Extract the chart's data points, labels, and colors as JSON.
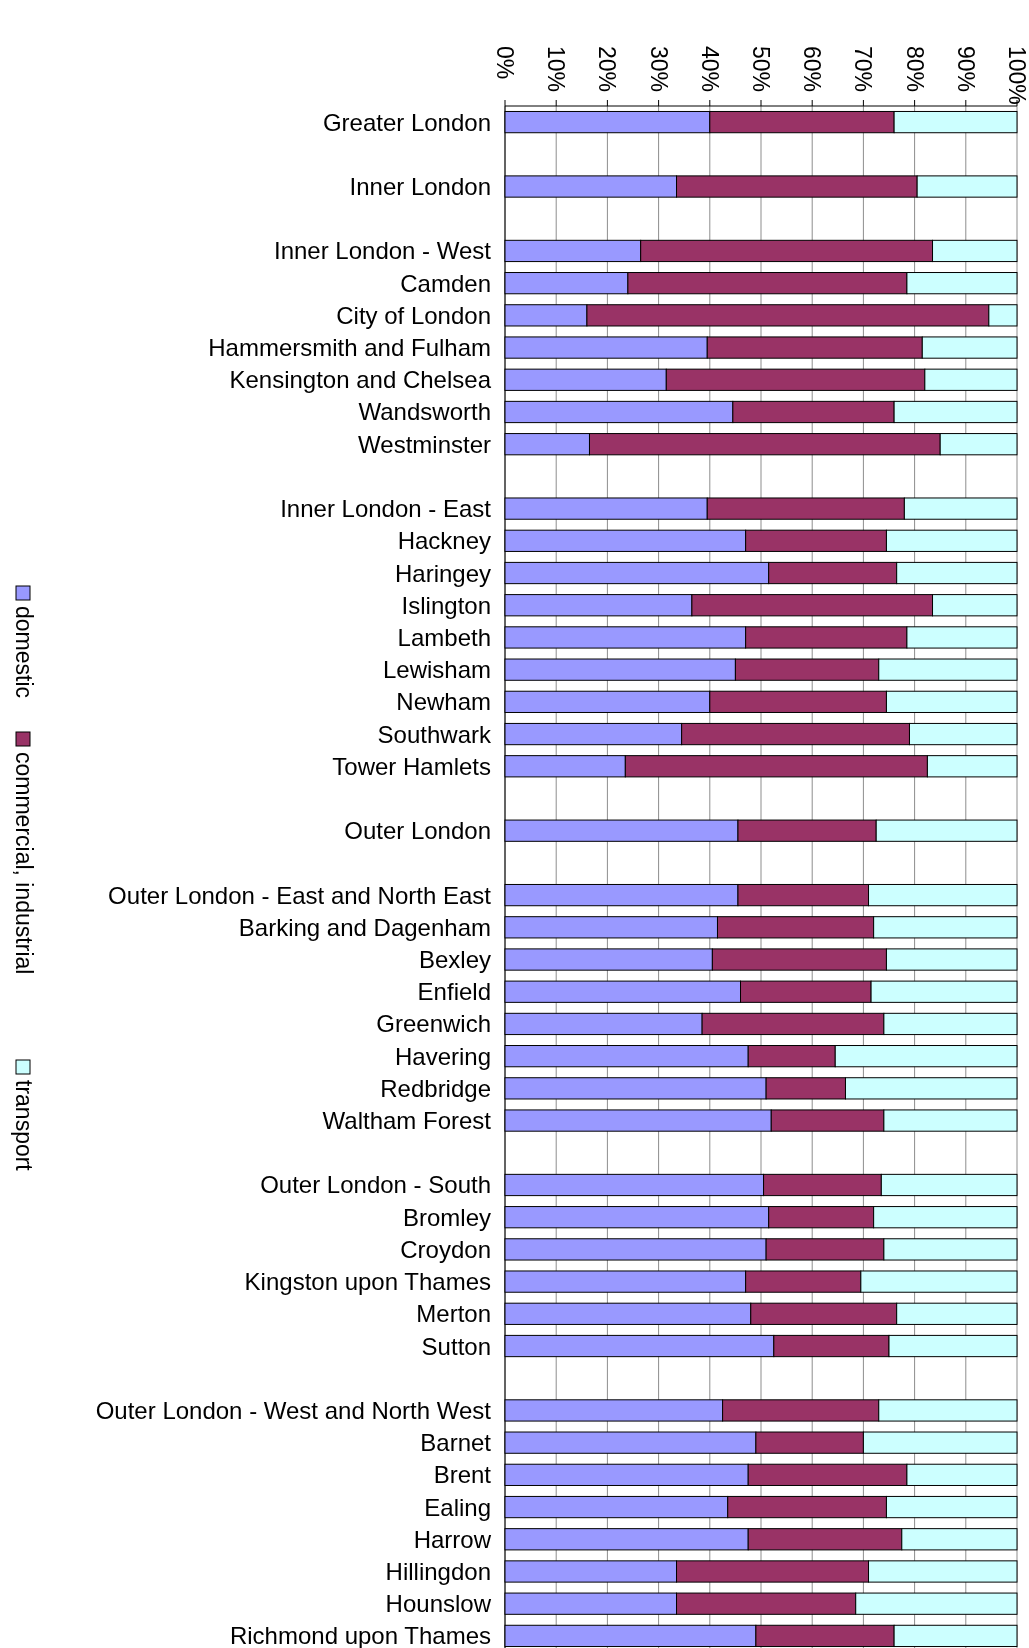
{
  "chart_data": {
    "type": "bar",
    "orientation": "horizontal",
    "stacked": true,
    "grid": "x",
    "legend": "left",
    "categories": [
      "Greater London",
      null,
      "Inner London",
      null,
      "Inner London - West",
      "Camden",
      "City of London",
      "Hammersmith and Fulham",
      "Kensington and Chelsea",
      "Wandsworth",
      "Westminster",
      null,
      "Inner London - East",
      "Hackney",
      "Haringey",
      "Islington",
      "Lambeth",
      "Lewisham",
      "Newham",
      "Southwark",
      "Tower Hamlets",
      null,
      "Outer London",
      null,
      "Outer London - East and North East",
      "Barking and Dagenham",
      "Bexley",
      "Enfield",
      "Greenwich",
      "Havering",
      "Redbridge",
      "Waltham Forest",
      null,
      "Outer London - South",
      "Bromley",
      "Croydon",
      "Kingston upon Thames",
      "Merton",
      "Sutton",
      null,
      "Outer London - West and North West",
      "Barnet",
      "Brent",
      "Ealing",
      "Harrow",
      "Hillingdon",
      "Hounslow",
      "Richmond upon Thames"
    ],
    "series": [
      {
        "name": "domestic",
        "color": "#9999ff",
        "values": [
          40,
          null,
          33.5,
          null,
          26.5,
          24,
          16,
          39.5,
          31.5,
          44.5,
          16.5,
          null,
          39.5,
          47,
          51.5,
          36.5,
          47,
          45,
          40,
          34.5,
          23.5,
          null,
          45.5,
          null,
          45.5,
          41.5,
          40.5,
          46,
          38.5,
          47.5,
          51,
          52,
          null,
          50.5,
          51.5,
          51,
          47,
          48,
          52.5,
          null,
          42.5,
          49,
          47.5,
          43.5,
          47.5,
          33.5,
          33.5,
          49
        ]
      },
      {
        "name": "commercial, industrial",
        "color": "#993366",
        "values": [
          36,
          null,
          47,
          null,
          57,
          54.5,
          78.5,
          42,
          50.5,
          31.5,
          68.5,
          null,
          38.5,
          27.5,
          25,
          47,
          31.5,
          28,
          34.5,
          44.5,
          59,
          null,
          27,
          null,
          25.5,
          30.5,
          34,
          25.5,
          35.5,
          17,
          15.5,
          22,
          null,
          23,
          20.5,
          23,
          22.5,
          28.5,
          22.5,
          null,
          30.5,
          21,
          31,
          31,
          30,
          37.5,
          35,
          27
        ]
      },
      {
        "name": "transport",
        "color": "#ccffff",
        "values": [
          24,
          null,
          19.5,
          null,
          16.5,
          21.5,
          5.5,
          18.5,
          18,
          24,
          15,
          null,
          22,
          25.5,
          23.5,
          16.5,
          21.5,
          27,
          25.5,
          21,
          17.5,
          null,
          27.5,
          null,
          29,
          28,
          25.5,
          28.5,
          26,
          35.5,
          33.5,
          26,
          null,
          26.5,
          28,
          26,
          30.5,
          23.5,
          25,
          null,
          27,
          30,
          21.5,
          25.5,
          22.5,
          29,
          31.5,
          24
        ]
      }
    ],
    "xlim": [
      0,
      100
    ],
    "xticks": [
      {
        "value": 0,
        "label": "0%"
      },
      {
        "value": 10,
        "label": "10%"
      },
      {
        "value": 20,
        "label": "20%"
      },
      {
        "value": 30,
        "label": "30%"
      },
      {
        "value": 40,
        "label": "40%"
      },
      {
        "value": 50,
        "label": "50%"
      },
      {
        "value": 60,
        "label": "60%"
      },
      {
        "value": 70,
        "label": "70%"
      },
      {
        "value": 80,
        "label": "80%"
      },
      {
        "value": 90,
        "label": "90%"
      },
      {
        "value": 100,
        "label": "100%"
      }
    ]
  }
}
